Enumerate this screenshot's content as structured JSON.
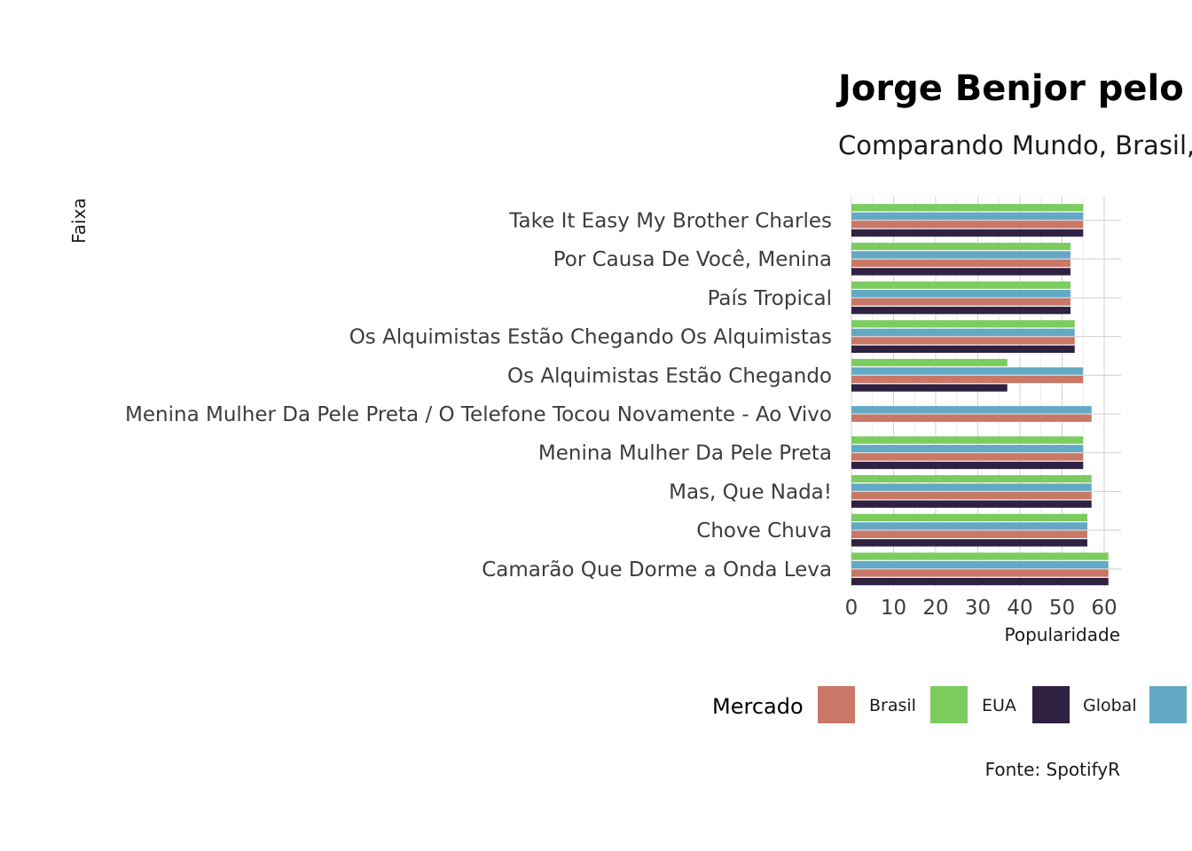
{
  "chart_data": {
    "type": "bar",
    "orientation": "horizontal",
    "title": "Jorge Benjor pelo M",
    "subtitle": "Comparando Mundo, Brasil,",
    "xlabel": "Popularidade",
    "ylabel": "Faixa",
    "xlim": [
      0,
      64
    ],
    "xticks": [
      "0",
      "10",
      "20",
      "30",
      "40",
      "50",
      "60"
    ],
    "grid": true,
    "legend_position": "bottom",
    "legend_title": "Mercado",
    "caption": "Fonte: SpotifyR",
    "categories": [
      "Take It Easy My Brother Charles",
      "Por Causa De Você, Menina",
      "País Tropical",
      "Os Alquimistas Estão Chegando Os Alquimistas",
      "Os Alquimistas Estão Chegando",
      "Menina Mulher Da Pele Preta / O Telefone Tocou Novamente - Ao Vivo",
      "Menina Mulher Da Pele Preta",
      "Mas, Que Nada!",
      "Chove Chuva",
      "Camarão Que Dorme a Onda Leva"
    ],
    "series": [
      {
        "name": "Brasil",
        "color": "#c97766",
        "values": [
          55,
          52,
          52,
          53,
          55,
          57,
          55,
          57,
          56,
          61
        ]
      },
      {
        "name": "EUA",
        "color": "#7ccb5f",
        "values": [
          55,
          52,
          52,
          53,
          37,
          null,
          55,
          57,
          56,
          61
        ]
      },
      {
        "name": "Global",
        "color": "#2e2142",
        "values": [
          55,
          52,
          52,
          53,
          37,
          null,
          55,
          57,
          56,
          61
        ]
      },
      {
        "name": "",
        "color": "#63a9c5",
        "values": [
          55,
          52,
          52,
          53,
          55,
          57,
          55,
          57,
          56,
          61
        ]
      }
    ]
  }
}
